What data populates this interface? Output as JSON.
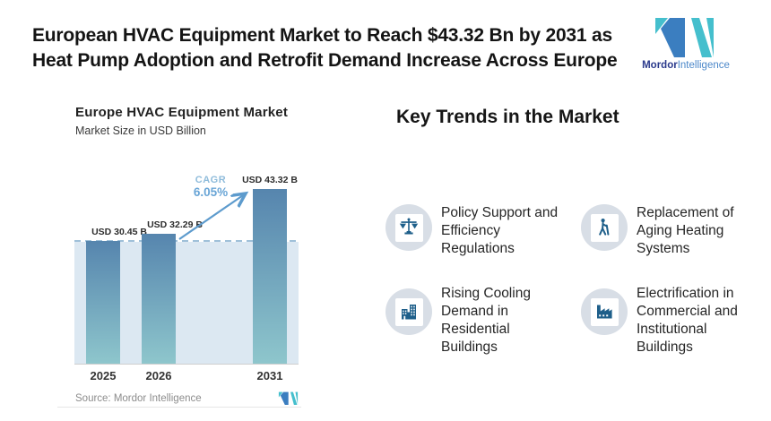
{
  "header": {
    "title": "European HVAC Equipment Market to Reach $43.32 Bn by 2031 as Heat Pump Adoption and Retrofit Demand Increase Across Europe",
    "brand": {
      "name_bold": "Mordor",
      "name_light": "Intelligence"
    }
  },
  "chart": {
    "title": "Europe HVAC Equipment Market",
    "subtitle": "Market Size in USD Billion",
    "cagr_label": "CAGR",
    "cagr_value": "6.05%",
    "source": "Source: Mordor Intelligence",
    "bars": [
      {
        "year": "2025",
        "label": "USD 30.45 B"
      },
      {
        "year": "2026",
        "label": "USD 32.29 B"
      },
      {
        "year": "2031",
        "label": "USD 43.32 B"
      }
    ]
  },
  "chart_data": {
    "type": "bar",
    "title": "Europe HVAC Equipment Market",
    "subtitle": "Market Size in USD Billion",
    "categories": [
      "2025",
      "2026",
      "2031"
    ],
    "values": [
      30.45,
      32.29,
      43.32
    ],
    "xlabel": "",
    "ylabel": "Market Size in USD Billion",
    "ylim": [
      0,
      45
    ],
    "grid": false,
    "legend": "none",
    "annotations": [
      "USD 30.45 B",
      "USD 32.29 B",
      "USD 43.32 B",
      "CAGR 6.05%"
    ],
    "reference_line_value": 30.45
  },
  "trends": {
    "heading": "Key Trends in the Market",
    "items": [
      {
        "icon": "scales-icon",
        "text": "Policy Support and Efficiency Regulations"
      },
      {
        "icon": "elderly-person-icon",
        "text": "Replacement of Aging Heating Systems"
      },
      {
        "icon": "buildings-icon",
        "text": "Rising Cooling Demand in Residential Buildings"
      },
      {
        "icon": "factory-icon",
        "text": "Electrification in Commercial and Institutional Buildings"
      }
    ]
  },
  "colors": {
    "bar_gradient_top": "#5685AE",
    "bar_gradient_bottom": "#8EC6CC",
    "band": "#DCE8F2",
    "dashed_line": "#9FC0D9",
    "arrow": "#5D9BCD",
    "cagr_text": "#69A5D6",
    "icon_blue": "#1E5F8A",
    "icon_circle_bg": "#D8DEE6",
    "logo_blue": "#3B7EC0",
    "logo_teal": "#45BFCD"
  }
}
